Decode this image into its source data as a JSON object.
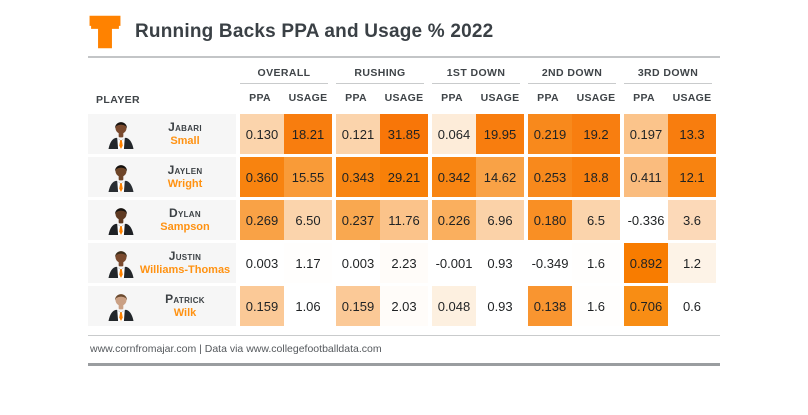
{
  "title": "Running Backs PPA and Usage % 2022",
  "logo": {
    "name": "tennessee-power-t",
    "color": "#ff8200"
  },
  "accent_color": "#ff8200",
  "name_color": "#ff9212",
  "table": {
    "player_header": "PLAYER",
    "groups": [
      {
        "label": "OVERALL"
      },
      {
        "label": "RUSHING"
      },
      {
        "label": "1ST DOWN"
      },
      {
        "label": "2ND DOWN"
      },
      {
        "label": "3RD DOWN"
      }
    ],
    "sub_headers": [
      "PPA",
      "USAGE",
      "PPA",
      "USAGE",
      "PPA",
      "USAGE",
      "PPA",
      "USAGE",
      "PPA",
      "USAGE"
    ],
    "players": [
      {
        "first": "Jabari",
        "last": "Small",
        "avatar": {
          "skin": "#7a4a2e",
          "hair": "#171310",
          "suit": "#23272b"
        },
        "cells": [
          {
            "v": "0.130",
            "bg": "#fbd4ac"
          },
          {
            "v": "18.21",
            "bg": "#f87d0e"
          },
          {
            "v": "0.121",
            "bg": "#fbd4ac"
          },
          {
            "v": "31.85",
            "bg": "#f87608"
          },
          {
            "v": "0.064",
            "bg": "#fdecd9"
          },
          {
            "v": "19.95",
            "bg": "#f87d0e"
          },
          {
            "v": "0.219",
            "bg": "#f8891c"
          },
          {
            "v": "19.2",
            "bg": "#f87e10"
          },
          {
            "v": "0.197",
            "bg": "#fbc48b"
          },
          {
            "v": "13.3",
            "bg": "#f87d0e"
          }
        ]
      },
      {
        "first": "Jaylen",
        "last": "Wright",
        "avatar": {
          "skin": "#6e4528",
          "hair": "#14100d",
          "suit": "#2a2e33"
        },
        "cells": [
          {
            "v": "0.360",
            "bg": "#f8830f"
          },
          {
            "v": "15.55",
            "bg": "#f99b38"
          },
          {
            "v": "0.343",
            "bg": "#f88512"
          },
          {
            "v": "29.21",
            "bg": "#f88008"
          },
          {
            "v": "0.342",
            "bg": "#f88512"
          },
          {
            "v": "14.62",
            "bg": "#f9a246"
          },
          {
            "v": "0.253",
            "bg": "#f8891c"
          },
          {
            "v": "18.8",
            "bg": "#f88010"
          },
          {
            "v": "0.411",
            "bg": "#fabc7e"
          },
          {
            "v": "12.1",
            "bg": "#f88310"
          }
        ]
      },
      {
        "first": "Dylan",
        "last": "Sampson",
        "avatar": {
          "skin": "#5f3a22",
          "hair": "#171310",
          "suit": "#1d2024"
        },
        "cells": [
          {
            "v": "0.269",
            "bg": "#f9a246"
          },
          {
            "v": "6.50",
            "bg": "#fbd4ac"
          },
          {
            "v": "0.237",
            "bg": "#f9a850"
          },
          {
            "v": "11.76",
            "bg": "#fbc38a"
          },
          {
            "v": "0.226",
            "bg": "#faaf5e"
          },
          {
            "v": "6.96",
            "bg": "#fbd2a8"
          },
          {
            "v": "0.180",
            "bg": "#f98f24"
          },
          {
            "v": "6.5",
            "bg": "#fbd4ac"
          },
          {
            "v": "-0.336",
            "bg": "#ffffff"
          },
          {
            "v": "3.6",
            "bg": "#fcd9b8"
          }
        ]
      },
      {
        "first": "Justin",
        "last": "Williams-Thomas",
        "avatar": {
          "skin": "#7a4a2e",
          "hair": "#3a2c1a",
          "suit": "#23272b"
        },
        "cells": [
          {
            "v": "0.003",
            "bg": "#ffffff"
          },
          {
            "v": "1.17",
            "bg": "#fffefd"
          },
          {
            "v": "0.003",
            "bg": "#ffffff"
          },
          {
            "v": "2.23",
            "bg": "#fffcf9"
          },
          {
            "v": "-0.001",
            "bg": "#ffffff"
          },
          {
            "v": "0.93",
            "bg": "#ffffff"
          },
          {
            "v": "-0.349",
            "bg": "#ffffff"
          },
          {
            "v": "1.6",
            "bg": "#fffefd"
          },
          {
            "v": "0.892",
            "bg": "#f87c00"
          },
          {
            "v": "1.2",
            "bg": "#fdf3e7"
          }
        ]
      },
      {
        "first": "Patrick",
        "last": "Wilk",
        "avatar": {
          "skin": "#caa084",
          "hair": "#6b4a2f",
          "suit": "#23272b"
        },
        "cells": [
          {
            "v": "0.159",
            "bg": "#fbc997"
          },
          {
            "v": "1.06",
            "bg": "#ffffff"
          },
          {
            "v": "0.159",
            "bg": "#fbc997"
          },
          {
            "v": "2.03",
            "bg": "#fffcf9"
          },
          {
            "v": "0.048",
            "bg": "#fdf0e0"
          },
          {
            "v": "0.93",
            "bg": "#ffffff"
          },
          {
            "v": "0.138",
            "bg": "#f99530"
          },
          {
            "v": "1.6",
            "bg": "#fffefd"
          },
          {
            "v": "0.706",
            "bg": "#f88d14"
          },
          {
            "v": "0.6",
            "bg": "#ffffff"
          }
        ]
      }
    ]
  },
  "footer": {
    "text": "www.cornfromajar.com | Data via www.collegefootballdata.com"
  },
  "chart_data": {
    "type": "heatmap",
    "title": "Running Backs PPA and Usage % 2022",
    "row_labels": [
      "Jabari Small",
      "Jaylen Wright",
      "Dylan Sampson",
      "Justin Williams-Thomas",
      "Patrick Wilk"
    ],
    "column_groups": [
      "OVERALL",
      "RUSHING",
      "1ST DOWN",
      "2ND DOWN",
      "3RD DOWN"
    ],
    "columns": [
      "OVERALL PPA",
      "OVERALL USAGE",
      "RUSHING PPA",
      "RUSHING USAGE",
      "1ST DOWN PPA",
      "1ST DOWN USAGE",
      "2ND DOWN PPA",
      "2ND DOWN USAGE",
      "3RD DOWN PPA",
      "3RD DOWN USAGE"
    ],
    "values": [
      [
        0.13,
        18.21,
        0.121,
        31.85,
        0.064,
        19.95,
        0.219,
        19.2,
        0.197,
        13.3
      ],
      [
        0.36,
        15.55,
        0.343,
        29.21,
        0.342,
        14.62,
        0.253,
        18.8,
        0.411,
        12.1
      ],
      [
        0.269,
        6.5,
        0.237,
        11.76,
        0.226,
        6.96,
        0.18,
        6.5,
        -0.336,
        3.6
      ],
      [
        0.003,
        1.17,
        0.003,
        2.23,
        -0.001,
        0.93,
        -0.349,
        1.6,
        0.892,
        1.2
      ],
      [
        0.159,
        1.06,
        0.159,
        2.03,
        0.048,
        0.93,
        0.138,
        1.6,
        0.706,
        0.6
      ]
    ],
    "color_scale": "white-to-orange per column",
    "legend_position": "none",
    "grid": false
  }
}
